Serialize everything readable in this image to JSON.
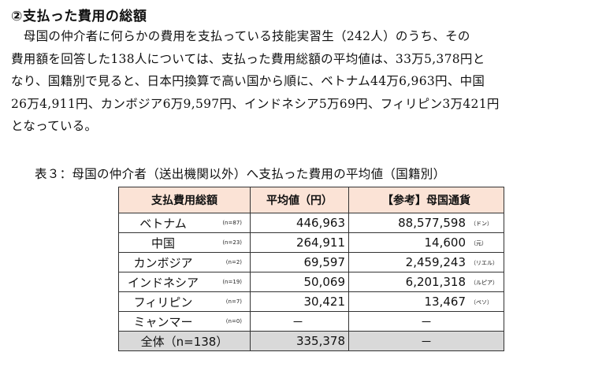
{
  "heading": "②支払った費用の総額",
  "paragraph_lines": [
    "　母国の仲介者に何らかの費用を支払っている技能実習生（242人）のうち、その",
    "費用額を回答した138人については、支払った費用総額の平均値は、33万5,378円と",
    "なり、国籍別で見ると、日本円換算で高い国から順に、ベトナム44万6,963円、中国",
    "26万4,911円、カンボジア6万9,597円、インドネシア5万69円、フィリピン3万421円",
    "となっている。"
  ],
  "table": {
    "caption": "表３：母国の仲介者（送出機関以外）へ支払った費用の平均値（国籍別）",
    "headers": [
      "支払費用総額",
      "平均値（円）",
      "【参考】母国通貨"
    ],
    "rows": [
      {
        "country": "ベトナム",
        "n": "(n=87)",
        "avg_yen": "446,963",
        "local": "88,577,598",
        "currency": "（ドン）"
      },
      {
        "country": "中国",
        "n": "(n=23)",
        "avg_yen": "264,911",
        "local": "14,600",
        "currency": "（元）"
      },
      {
        "country": "カンボジア",
        "n": "(n=2)",
        "avg_yen": "69,597",
        "local": "2,459,243",
        "currency": "（リエル）"
      },
      {
        "country": "インドネシア",
        "n": "(n=19)",
        "avg_yen": "50,069",
        "local": "6,201,318",
        "currency": "（ルピア）"
      },
      {
        "country": "フィリピン",
        "n": "(n=7)",
        "avg_yen": "30,421",
        "local": "13,467",
        "currency": "（ペソ）"
      },
      {
        "country": "ミャンマー",
        "n": "(n=0)",
        "avg_yen": "－",
        "local": "－",
        "currency": ""
      }
    ],
    "total": {
      "label": "全体（n=138）",
      "avg_yen": "335,378",
      "local": "－"
    }
  }
}
